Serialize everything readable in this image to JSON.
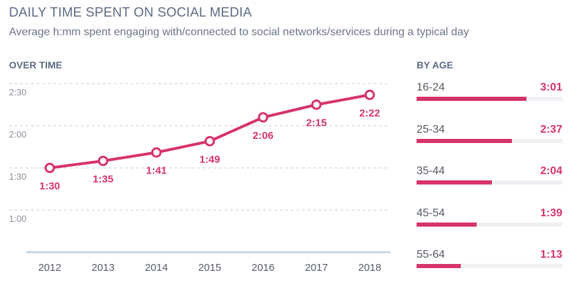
{
  "title": "DAILY TIME SPENT ON SOCIAL MEDIA",
  "subtitle": "Average h:mm spent engaging with/connected to social networks/services during a typical day",
  "colors": {
    "accent": "#d6336c",
    "title": "#5d6b85",
    "track": "#eef0f4"
  },
  "chart_data": [
    {
      "type": "line",
      "title": "OVER TIME",
      "x": [
        "2012",
        "2013",
        "2014",
        "2015",
        "2016",
        "2017",
        "2018"
      ],
      "values": [
        "1:30",
        "1:35",
        "1:41",
        "1:49",
        "2:06",
        "2:15",
        "2:22"
      ],
      "y_ticks": [
        "1:00",
        "1:30",
        "2:00",
        "2:30"
      ],
      "ylim": [
        "0:30",
        "2:30"
      ],
      "grid": "horizontal dashed"
    },
    {
      "type": "bar",
      "title": "BY AGE",
      "orientation": "horizontal",
      "categories": [
        "16-24",
        "25-34",
        "35-44",
        "45-54",
        "55-64"
      ],
      "values": [
        "3:01",
        "2:37",
        "2:04",
        "1:39",
        "1:13"
      ],
      "xlim": [
        "0:00",
        "4:00"
      ]
    }
  ]
}
